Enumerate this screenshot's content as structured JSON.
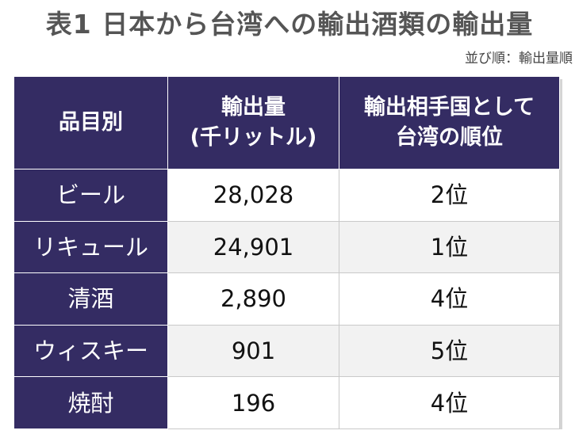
{
  "title": "表1 日本から台湾への輸出酒類の輸出量",
  "sort_note": "並び順：輸出量順",
  "table": {
    "headers": {
      "item": "品目別",
      "volume_line1": "輸出量",
      "volume_line2": "(千リットル)",
      "rank_line1": "輸出相手国として",
      "rank_line2": "台湾の順位"
    },
    "rows": [
      {
        "item": "ビール",
        "volume": "28,028",
        "rank": "2位"
      },
      {
        "item": "リキュール",
        "volume": "24,901",
        "rank": "1位"
      },
      {
        "item": "清酒",
        "volume": "2,890",
        "rank": "4位"
      },
      {
        "item": "ウィスキー",
        "volume": "901",
        "rank": "5位"
      },
      {
        "item": "焼酎",
        "volume": "196",
        "rank": "4位"
      }
    ]
  },
  "colors": {
    "header_bg": "#342c63",
    "header_text": "#ffffff",
    "stripe": "#f2f2f2",
    "title": "#555555"
  }
}
